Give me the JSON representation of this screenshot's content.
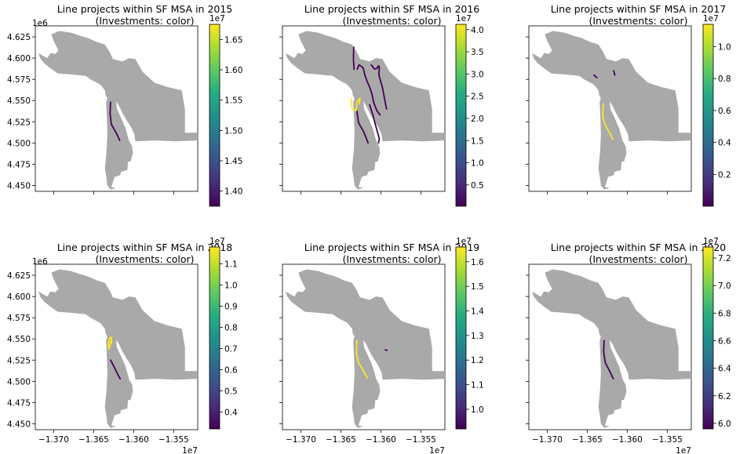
{
  "chart_data": [
    {
      "type": "map",
      "title_line1": "Line projects within SF MSA in 2015",
      "title_line2": "(Investments: color)",
      "colorbar": {
        "ticks": [
          "1.40",
          "1.45",
          "1.50",
          "1.55",
          "1.60",
          "1.65"
        ],
        "tick_values": [
          1.4,
          1.45,
          1.5,
          1.55,
          1.6,
          1.65
        ],
        "range": [
          1.375,
          1.675
        ],
        "exponent": "1e7"
      },
      "y_ticks": [
        "4.450",
        "4.475",
        "4.500",
        "4.525",
        "4.550",
        "4.575",
        "4.600",
        "4.625"
      ],
      "y_exponent": "1e6",
      "x_ticks": [],
      "x_exponent": "",
      "lines": [
        {
          "value": 1.375,
          "points": [
            [
              -13629000,
              4548000
            ],
            [
              -13629500,
              4535000
            ],
            [
              -13628000,
              4522000
            ],
            [
              -13622000,
              4512000
            ],
            [
              -13617500,
              4503000
            ]
          ]
        }
      ]
    },
    {
      "type": "map",
      "title_line1": "Line projects within SF MSA in 2016",
      "title_line2": "(Investments: color)",
      "colorbar": {
        "ticks": [
          "0.5",
          "1.0",
          "1.5",
          "2.0",
          "2.5",
          "3.0",
          "3.5",
          "4.0"
        ],
        "tick_values": [
          0.5,
          1.0,
          1.5,
          2.0,
          2.5,
          3.0,
          3.5,
          4.0
        ],
        "range": [
          0.02,
          4.12
        ],
        "exponent": "1e7"
      },
      "y_ticks": [],
      "y_exponent": "",
      "x_ticks": [],
      "x_exponent": "",
      "lines": [
        {
          "value": 0.02,
          "points": [
            [
              -13634000,
              4613000
            ],
            [
              -13634300,
              4600000
            ],
            [
              -13633600,
              4587000
            ]
          ]
        },
        {
          "value": 0.02,
          "points": [
            [
              -13629500,
              4587000
            ],
            [
              -13627500,
              4592000
            ],
            [
              -13624000,
              4590000
            ],
            [
              -13622000,
              4588000
            ],
            [
              -13620000,
              4580000
            ],
            [
              -13617000,
              4572000
            ],
            [
              -13614000,
              4566000
            ],
            [
              -13611000,
              4557000
            ],
            [
              -13609000,
              4548000
            ],
            [
              -13605000,
              4538000
            ],
            [
              -13601000,
              4533000
            ]
          ]
        },
        {
          "value": 0.02,
          "points": [
            [
              -13612000,
              4592000
            ],
            [
              -13608000,
              4587000
            ],
            [
              -13605000,
              4588000
            ],
            [
              -13603000,
              4591000
            ]
          ]
        },
        {
          "value": 0.02,
          "points": [
            [
              -13602000,
              4590000
            ],
            [
              -13602500,
              4580000
            ],
            [
              -13598000,
              4565000
            ],
            [
              -13595000,
              4550000
            ],
            [
              -13593000,
              4540000
            ]
          ]
        },
        {
          "value": 0.02,
          "points": [
            [
              -13630000,
              4538000
            ],
            [
              -13628000,
              4524000
            ],
            [
              -13622000,
              4514000
            ],
            [
              -13618000,
              4505000
            ],
            [
              -13616000,
              4500000
            ]
          ]
        },
        {
          "value": 0.02,
          "points": [
            [
              -13614000,
              4545000
            ],
            [
              -13610000,
              4533000
            ],
            [
              -13607000,
              4522000
            ],
            [
              -13604000,
              4512000
            ],
            [
              -13602000,
              4505000
            ],
            [
              -13603000,
              4500000
            ]
          ]
        },
        {
          "value": 4.12,
          "points": [
            [
              -13637000,
              4552000
            ],
            [
              -13636000,
              4540000
            ],
            [
              -13631000,
              4538000
            ],
            [
              -13630000,
              4548000
            ],
            [
              -13626000,
              4553000
            ],
            [
              -13627000,
              4546000
            ]
          ]
        }
      ]
    },
    {
      "type": "map",
      "title_line1": "Line projects within SF MSA in 2017",
      "title_line2": "(Investments: color)",
      "colorbar": {
        "ticks": [
          "0.2",
          "0.4",
          "0.6",
          "0.8",
          "1.0"
        ],
        "tick_values": [
          0.2,
          0.4,
          0.6,
          0.8,
          1.0
        ],
        "range": [
          0.0,
          1.14
        ],
        "exponent": "1e7"
      },
      "y_ticks": [],
      "y_exponent": "",
      "x_ticks": [],
      "x_exponent": "",
      "lines": [
        {
          "value": 0.0,
          "points": [
            [
              -13641500,
              4580000
            ],
            [
              -13638000,
              4577000
            ]
          ]
        },
        {
          "value": 0.0,
          "points": [
            [
              -13617000,
              4585000
            ],
            [
              -13615500,
              4580000
            ]
          ]
        },
        {
          "value": 1.14,
          "points": [
            [
              -13630000,
              4546000
            ],
            [
              -13630500,
              4530000
            ],
            [
              -13628000,
              4522000
            ],
            [
              -13622000,
              4512000
            ],
            [
              -13618000,
              4504000
            ]
          ]
        }
      ]
    },
    {
      "type": "map",
      "title_line1": "Line projects within SF MSA in 2018",
      "title_line2": "(Investments: color)",
      "colorbar": {
        "ticks": [
          "0.4",
          "0.5",
          "0.6",
          "0.7",
          "0.8",
          "0.9",
          "1.0",
          "1.1"
        ],
        "tick_values": [
          0.4,
          0.5,
          0.6,
          0.7,
          0.8,
          0.9,
          1.0,
          1.1
        ],
        "range": [
          0.32,
          1.18
        ],
        "exponent": "1e7"
      },
      "y_ticks": [
        "4.450",
        "4.475",
        "4.500",
        "4.525",
        "4.550",
        "4.575",
        "4.600",
        "4.625"
      ],
      "y_exponent": "1e6",
      "x_ticks": [
        "−1.370",
        "−1.365",
        "−1.360",
        "−1.355"
      ],
      "x_exponent": "1e7",
      "lines": [
        {
          "value": 0.32,
          "points": [
            [
              -13629000,
              4525000
            ],
            [
              -13625000,
              4518000
            ],
            [
              -13621000,
              4510000
            ],
            [
              -13617000,
              4503000
            ]
          ]
        },
        {
          "value": 1.18,
          "points": [
            [
              -13632000,
              4540000
            ],
            [
              -13631000,
              4549000
            ],
            [
              -13629000,
              4552000
            ],
            [
              -13628000,
              4548000
            ],
            [
              -13630000,
              4542000
            ],
            [
              -13631000,
              4538000
            ]
          ]
        },
        {
          "value": 1.18,
          "points": [
            [
              -13628000,
              4552000
            ],
            [
              -13627500,
              4546000
            ],
            [
              -13629000,
              4544000
            ]
          ]
        }
      ]
    },
    {
      "type": "map",
      "title_line1": "Line projects within SF MSA in 2019",
      "title_line2": "(Investments: color)",
      "colorbar": {
        "ticks": [
          "1.0",
          "1.1",
          "1.2",
          "1.3",
          "1.4",
          "1.5",
          "1.6"
        ],
        "tick_values": [
          1.0,
          1.1,
          1.2,
          1.3,
          1.4,
          1.5,
          1.6
        ],
        "range": [
          0.92,
          1.66
        ],
        "exponent": "1e7"
      },
      "y_ticks": [],
      "y_exponent": "",
      "x_ticks": [
        "−1.370",
        "−1.365",
        "−1.360",
        "−1.355"
      ],
      "x_exponent": "1e7",
      "lines": [
        {
          "value": 0.92,
          "points": [
            [
              -13594500,
              4537000
            ],
            [
              -13592500,
              4536500
            ]
          ]
        },
        {
          "value": 1.66,
          "points": [
            [
              -13630000,
              4548000
            ],
            [
              -13630500,
              4533000
            ],
            [
              -13628000,
              4522000
            ],
            [
              -13622000,
              4513000
            ],
            [
              -13617000,
              4504000
            ]
          ]
        }
      ]
    },
    {
      "type": "map",
      "title_line1": "Line projects within SF MSA in 2020",
      "title_line2": "(Investments: color)",
      "colorbar": {
        "ticks": [
          "6.0",
          "6.2",
          "6.4",
          "6.6",
          "6.8",
          "7.0",
          "7.2"
        ],
        "tick_values": [
          6.0,
          6.2,
          6.4,
          6.6,
          6.8,
          7.0,
          7.2
        ],
        "range": [
          5.96,
          7.28
        ],
        "exponent": "1e7"
      },
      "y_ticks": [],
      "y_exponent": "",
      "x_ticks": [
        "−1.370",
        "−1.365",
        "−1.360",
        "−1.355"
      ],
      "x_exponent": "1e7",
      "lines": [
        {
          "value": 5.96,
          "points": [
            [
              -13629000,
              4548000
            ],
            [
              -13629500,
              4535000
            ],
            [
              -13627500,
              4522000
            ],
            [
              -13622000,
              4512000
            ],
            [
              -13617500,
              4503000
            ]
          ]
        }
      ]
    }
  ],
  "axes": {
    "x_range": [
      -13723000,
      -13520000
    ],
    "y_range": [
      4443000,
      4638000
    ]
  },
  "colors": {
    "land": "#a9a9a9",
    "cmap_low": "#440154",
    "cmap_high": "#fde725"
  }
}
